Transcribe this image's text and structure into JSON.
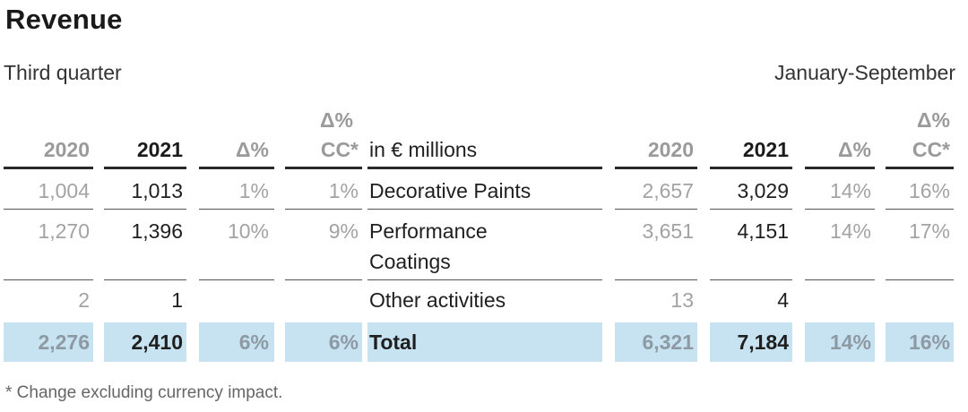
{
  "title": "Revenue",
  "subtitle_left": "Third quarter",
  "subtitle_right": "January-September",
  "headers": {
    "y2020": "2020",
    "y2021": "2021",
    "delta": "Δ%",
    "delta_cc_top": "Δ%",
    "delta_cc_bottom": "CC*",
    "label": "in € millions"
  },
  "rows": [
    {
      "label": "Decorative Paints",
      "q3_2020": "1,004",
      "q3_2021": "1,013",
      "q3_delta": "1%",
      "q3_cc": "1%",
      "ytd_2020": "2,657",
      "ytd_2021": "3,029",
      "ytd_delta": "14%",
      "ytd_cc": "16%"
    },
    {
      "label_line1": "Performance",
      "label_line2": "Coatings",
      "q3_2020": "1,270",
      "q3_2021": "1,396",
      "q3_delta": "10%",
      "q3_cc": "9%",
      "ytd_2020": "3,651",
      "ytd_2021": "4,151",
      "ytd_delta": "14%",
      "ytd_cc": "17%"
    },
    {
      "label": "Other activities",
      "q3_2020": "2",
      "q3_2021": "1",
      "q3_delta": "",
      "q3_cc": "",
      "ytd_2020": "13",
      "ytd_2021": "4",
      "ytd_delta": "",
      "ytd_cc": ""
    }
  ],
  "total": {
    "label": "Total",
    "q3_2020": "2,276",
    "q3_2021": "2,410",
    "q3_delta": "6%",
    "q3_cc": "6%",
    "ytd_2020": "6,321",
    "ytd_2021": "7,184",
    "ytd_delta": "14%",
    "ytd_cc": "16%"
  },
  "footnote": "* Change excluding currency impact.",
  "colors": {
    "highlight": "#c7e3f2",
    "grey_text": "#a3a3a3",
    "dark_text": "#1f1f1f"
  }
}
